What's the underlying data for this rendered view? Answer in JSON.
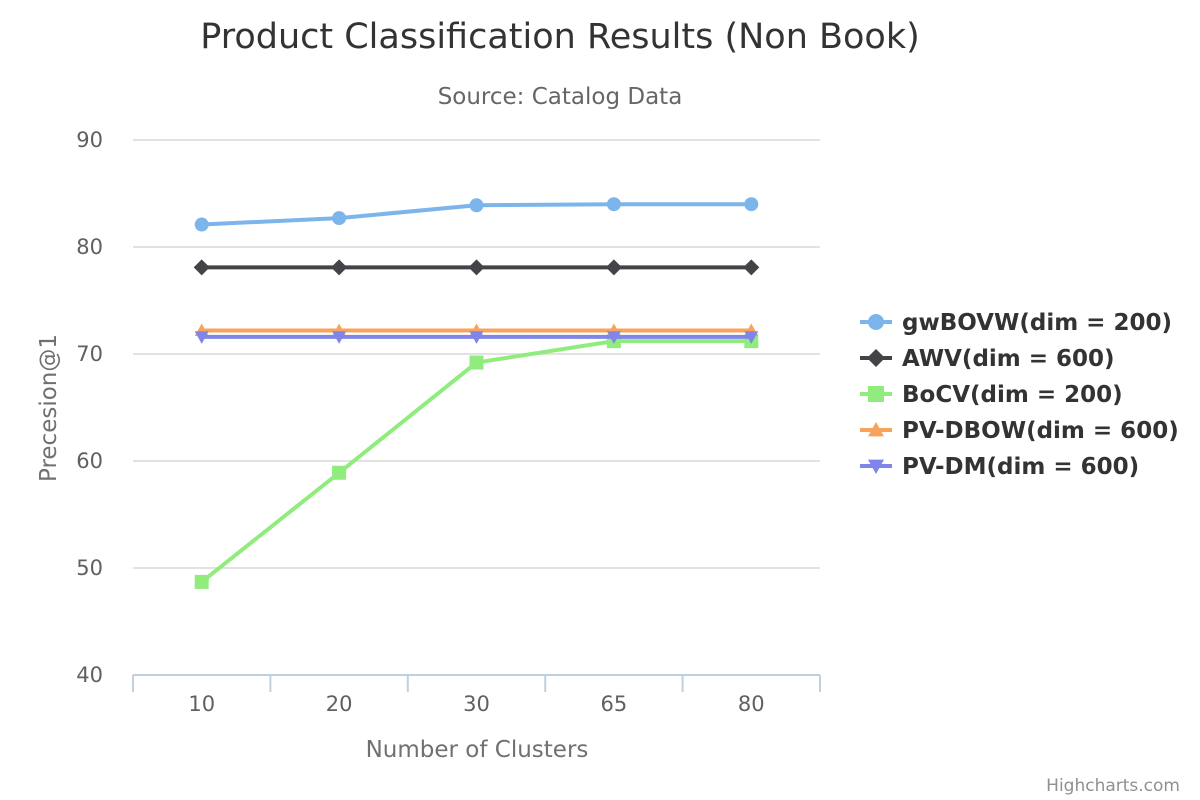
{
  "chart_data": {
    "type": "line",
    "title": "Product Classification Results (Non Book)",
    "subtitle": "Source: Catalog Data",
    "xlabel": "Number of Clusters",
    "ylabel": "Precesion@1",
    "categories": [
      "10",
      "20",
      "30",
      "65",
      "80"
    ],
    "ylim": [
      40,
      90
    ],
    "yticks": [
      40,
      50,
      60,
      70,
      80,
      90
    ],
    "grid": true,
    "legend_position": "right",
    "series": [
      {
        "name": "gwBOVW(dim = 200)",
        "values": [
          82.1,
          82.7,
          83.9,
          84.0,
          84.0
        ],
        "color": "#7cb5ec",
        "marker": "circle"
      },
      {
        "name": "AWV(dim = 600)",
        "values": [
          78.1,
          78.1,
          78.1,
          78.1,
          78.1
        ],
        "color": "#434348",
        "marker": "diamond"
      },
      {
        "name": "BoCV(dim = 200)",
        "values": [
          48.7,
          58.9,
          69.2,
          71.2,
          71.2
        ],
        "color": "#90ed7d",
        "marker": "square"
      },
      {
        "name": "PV-DBOW(dim = 600)",
        "values": [
          72.2,
          72.2,
          72.2,
          72.2,
          72.2
        ],
        "color": "#f7a35c",
        "marker": "triangle"
      },
      {
        "name": "PV-DM(dim = 600)",
        "values": [
          71.6,
          71.6,
          71.6,
          71.6,
          71.6
        ],
        "color": "#8085e9",
        "marker": "triangle-down"
      }
    ]
  },
  "credits": "Highcharts.com"
}
